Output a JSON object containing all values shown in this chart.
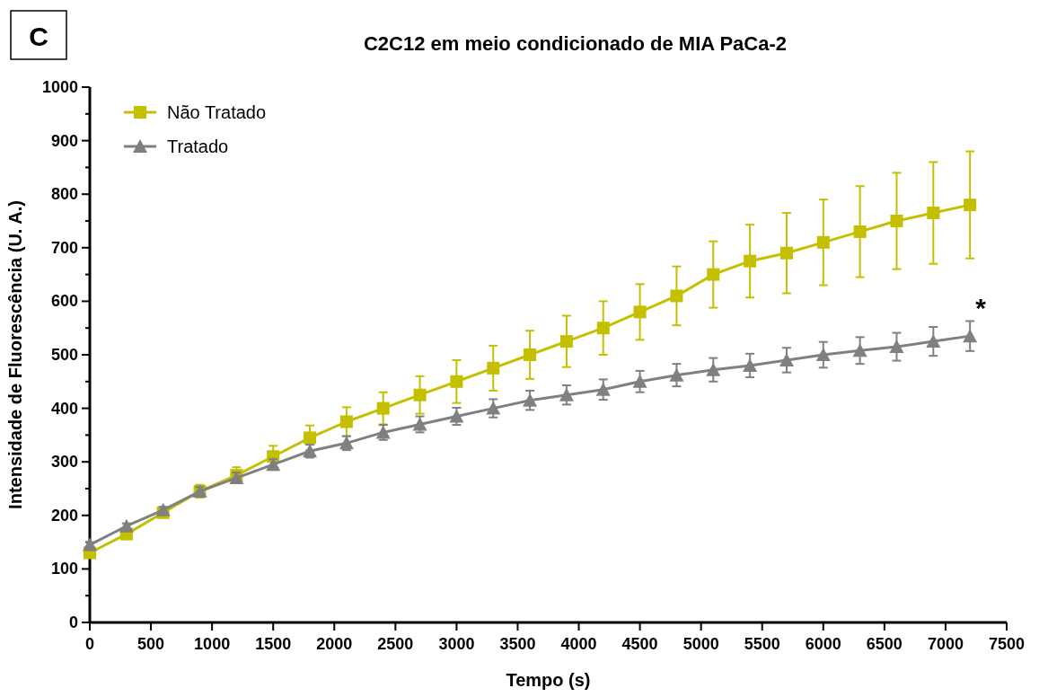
{
  "chart_data": {
    "type": "line",
    "title": "C2C12 em meio condicionado de MIA PaCa-2",
    "xlabel": "Tempo (s)",
    "ylabel": "Intensidade de Fluorescência (U. A.)",
    "annotations": [
      "C",
      "*"
    ],
    "x": [
      0,
      300,
      600,
      900,
      1200,
      1500,
      1800,
      2100,
      2400,
      2700,
      3000,
      3300,
      3600,
      3900,
      4200,
      4500,
      4800,
      5100,
      5400,
      5700,
      6000,
      6300,
      6600,
      6900,
      7200
    ],
    "series": [
      {
        "name": "Não Tratado",
        "color": "#c4c000",
        "marker": "square",
        "values": [
          130,
          165,
          205,
          245,
          275,
          310,
          345,
          375,
          400,
          425,
          450,
          475,
          500,
          525,
          550,
          580,
          610,
          650,
          675,
          690,
          710,
          730,
          750,
          765,
          780
        ],
        "errors": [
          5,
          6,
          8,
          12,
          15,
          20,
          23,
          27,
          30,
          35,
          40,
          42,
          45,
          48,
          50,
          52,
          55,
          62,
          68,
          75,
          80,
          85,
          90,
          95,
          100
        ]
      },
      {
        "name": "Tratado",
        "color": "#808080",
        "marker": "triangle",
        "values": [
          145,
          180,
          210,
          245,
          270,
          295,
          320,
          335,
          355,
          370,
          385,
          400,
          415,
          425,
          435,
          450,
          462,
          472,
          480,
          490,
          500,
          508,
          515,
          525,
          535
        ],
        "errors": [
          5,
          5,
          6,
          8,
          10,
          10,
          12,
          13,
          14,
          15,
          16,
          17,
          18,
          18,
          19,
          20,
          21,
          22,
          22,
          23,
          24,
          25,
          26,
          27,
          28
        ]
      }
    ],
    "xlim": [
      0,
      7500
    ],
    "xticks": [
      0,
      500,
      1000,
      1500,
      2000,
      2500,
      3000,
      3500,
      4000,
      4500,
      5000,
      5500,
      6000,
      6500,
      7000,
      7500
    ],
    "ylim": [
      0,
      1000
    ],
    "yticks": [
      0,
      {
        "value": 50,
        "label": null
      },
      100,
      {
        "value": 150,
        "label": null
      },
      200,
      {
        "value": 250,
        "label": null
      },
      300,
      {
        "value": 350,
        "label": null
      },
      400,
      {
        "value": 450,
        "label": null
      },
      500,
      {
        "value": 550,
        "label": null
      },
      600,
      {
        "value": 650,
        "label": null
      },
      700,
      {
        "value": 750,
        "label": null
      },
      800,
      {
        "value": 850,
        "label": null
      },
      900,
      {
        "value": 950,
        "label": null
      },
      1000
    ],
    "grid": false,
    "legend": "top left",
    "line_style": "solid"
  }
}
